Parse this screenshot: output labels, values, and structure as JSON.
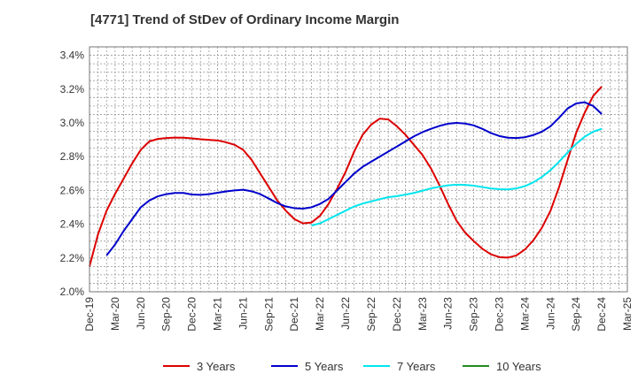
{
  "chart_data": {
    "type": "line",
    "title": "[4771]  Trend of StDev of Ordinary Income Margin",
    "xlabel": "",
    "ylabel": "",
    "x_ticks": [
      "Dec-19",
      "Mar-20",
      "Jun-20",
      "Sep-20",
      "Dec-20",
      "Mar-21",
      "Jun-21",
      "Sep-21",
      "Dec-21",
      "Mar-22",
      "Jun-22",
      "Sep-22",
      "Dec-22",
      "Mar-23",
      "Jun-23",
      "Sep-23",
      "Dec-23",
      "Mar-24",
      "Jun-24",
      "Sep-24",
      "Dec-24",
      "Mar-25"
    ],
    "y_ticks": [
      "2.0%",
      "2.2%",
      "2.4%",
      "2.6%",
      "2.8%",
      "3.0%",
      "3.2%",
      "3.4%"
    ],
    "ylim": [
      2.0,
      3.45
    ],
    "grid": true,
    "legend_position": "bottom",
    "series": [
      {
        "name": "3 Years",
        "color": "#dd0000",
        "points": [
          [
            "Dec-19",
            2.15
          ],
          [
            "Jan-20",
            2.34
          ],
          [
            "Feb-20",
            2.48
          ],
          [
            "Mar-20",
            2.58
          ],
          [
            "Apr-20",
            2.67
          ],
          [
            "May-20",
            2.76
          ],
          [
            "Jun-20",
            2.84
          ],
          [
            "Jul-20",
            2.89
          ],
          [
            "Aug-20",
            2.905
          ],
          [
            "Sep-20",
            2.91
          ],
          [
            "Oct-20",
            2.913
          ],
          [
            "Nov-20",
            2.912
          ],
          [
            "Dec-20",
            2.908
          ],
          [
            "Jan-21",
            2.903
          ],
          [
            "Feb-21",
            2.899
          ],
          [
            "Mar-21",
            2.896
          ],
          [
            "Apr-21",
            2.885
          ],
          [
            "May-21",
            2.87
          ],
          [
            "Jun-21",
            2.84
          ],
          [
            "Jul-21",
            2.78
          ],
          [
            "Aug-21",
            2.7
          ],
          [
            "Sep-21",
            2.62
          ],
          [
            "Oct-21",
            2.54
          ],
          [
            "Nov-21",
            2.48
          ],
          [
            "Dec-21",
            2.43
          ],
          [
            "Jan-22",
            2.405
          ],
          [
            "Feb-22",
            2.41
          ],
          [
            "Mar-22",
            2.45
          ],
          [
            "Apr-22",
            2.52
          ],
          [
            "May-22",
            2.61
          ],
          [
            "Jun-22",
            2.71
          ],
          [
            "Jul-22",
            2.83
          ],
          [
            "Aug-22",
            2.93
          ],
          [
            "Sep-22",
            2.99
          ],
          [
            "Oct-22",
            3.025
          ],
          [
            "Nov-22",
            3.02
          ],
          [
            "Dec-22",
            2.98
          ],
          [
            "Jan-23",
            2.93
          ],
          [
            "Feb-23",
            2.87
          ],
          [
            "Mar-23",
            2.81
          ],
          [
            "Apr-23",
            2.73
          ],
          [
            "May-23",
            2.63
          ],
          [
            "Jun-23",
            2.52
          ],
          [
            "Jul-23",
            2.42
          ],
          [
            "Aug-23",
            2.35
          ],
          [
            "Sep-23",
            2.3
          ],
          [
            "Oct-23",
            2.255
          ],
          [
            "Nov-23",
            2.222
          ],
          [
            "Dec-23",
            2.205
          ],
          [
            "Jan-24",
            2.202
          ],
          [
            "Feb-24",
            2.215
          ],
          [
            "Mar-24",
            2.25
          ],
          [
            "Apr-24",
            2.305
          ],
          [
            "May-24",
            2.38
          ],
          [
            "Jun-24",
            2.48
          ],
          [
            "Jul-24",
            2.62
          ],
          [
            "Aug-24",
            2.78
          ],
          [
            "Sep-24",
            2.94
          ],
          [
            "Oct-24",
            3.06
          ],
          [
            "Nov-24",
            3.16
          ],
          [
            "Dec-24",
            3.215
          ]
        ]
      },
      {
        "name": "5 Years",
        "color": "#0000cc",
        "points": [
          [
            "Feb-20",
            2.215
          ],
          [
            "Mar-20",
            2.28
          ],
          [
            "Apr-20",
            2.36
          ],
          [
            "May-20",
            2.43
          ],
          [
            "Jun-20",
            2.5
          ],
          [
            "Jul-20",
            2.54
          ],
          [
            "Aug-20",
            2.565
          ],
          [
            "Sep-20",
            2.578
          ],
          [
            "Oct-20",
            2.585
          ],
          [
            "Nov-20",
            2.585
          ],
          [
            "Dec-20",
            2.576
          ],
          [
            "Jan-21",
            2.574
          ],
          [
            "Feb-21",
            2.578
          ],
          [
            "Mar-21",
            2.586
          ],
          [
            "Apr-21",
            2.594
          ],
          [
            "May-21",
            2.6
          ],
          [
            "Jun-21",
            2.604
          ],
          [
            "Jul-21",
            2.595
          ],
          [
            "Aug-21",
            2.578
          ],
          [
            "Sep-21",
            2.552
          ],
          [
            "Oct-21",
            2.525
          ],
          [
            "Nov-21",
            2.505
          ],
          [
            "Dec-21",
            2.495
          ],
          [
            "Jan-22",
            2.492
          ],
          [
            "Feb-22",
            2.5
          ],
          [
            "Mar-22",
            2.52
          ],
          [
            "Apr-22",
            2.55
          ],
          [
            "May-22",
            2.6
          ],
          [
            "Jun-22",
            2.65
          ],
          [
            "Jul-22",
            2.7
          ],
          [
            "Aug-22",
            2.74
          ],
          [
            "Sep-22",
            2.77
          ],
          [
            "Oct-22",
            2.8
          ],
          [
            "Nov-22",
            2.83
          ],
          [
            "Dec-22",
            2.86
          ],
          [
            "Jan-23",
            2.89
          ],
          [
            "Feb-23",
            2.92
          ],
          [
            "Mar-23",
            2.945
          ],
          [
            "Apr-23",
            2.965
          ],
          [
            "May-23",
            2.982
          ],
          [
            "Jun-23",
            2.995
          ],
          [
            "Jul-23",
            3.0
          ],
          [
            "Aug-23",
            2.996
          ],
          [
            "Sep-23",
            2.985
          ],
          [
            "Oct-23",
            2.965
          ],
          [
            "Nov-23",
            2.94
          ],
          [
            "Dec-23",
            2.922
          ],
          [
            "Jan-24",
            2.912
          ],
          [
            "Feb-24",
            2.91
          ],
          [
            "Mar-24",
            2.915
          ],
          [
            "Apr-24",
            2.928
          ],
          [
            "May-24",
            2.948
          ],
          [
            "Jun-24",
            2.98
          ],
          [
            "Jul-24",
            3.03
          ],
          [
            "Aug-24",
            3.085
          ],
          [
            "Sep-24",
            3.115
          ],
          [
            "Oct-24",
            3.122
          ],
          [
            "Nov-24",
            3.1
          ],
          [
            "Dec-24",
            3.052
          ]
        ]
      },
      {
        "name": "7 Years",
        "color": "#00e5ee",
        "points": [
          [
            "Feb-22",
            2.392
          ],
          [
            "Mar-22",
            2.405
          ],
          [
            "Apr-22",
            2.43
          ],
          [
            "May-22",
            2.455
          ],
          [
            "Jun-22",
            2.48
          ],
          [
            "Jul-22",
            2.505
          ],
          [
            "Aug-22",
            2.522
          ],
          [
            "Sep-22",
            2.535
          ],
          [
            "Oct-22",
            2.548
          ],
          [
            "Nov-22",
            2.56
          ],
          [
            "Dec-22",
            2.566
          ],
          [
            "Jan-23",
            2.575
          ],
          [
            "Feb-23",
            2.585
          ],
          [
            "Mar-23",
            2.598
          ],
          [
            "Apr-23",
            2.612
          ],
          [
            "May-23",
            2.622
          ],
          [
            "Jun-23",
            2.63
          ],
          [
            "Jul-23",
            2.634
          ],
          [
            "Aug-23",
            2.633
          ],
          [
            "Sep-23",
            2.628
          ],
          [
            "Oct-23",
            2.62
          ],
          [
            "Nov-23",
            2.612
          ],
          [
            "Dec-23",
            2.607
          ],
          [
            "Jan-24",
            2.606
          ],
          [
            "Feb-24",
            2.612
          ],
          [
            "Mar-24",
            2.625
          ],
          [
            "Apr-24",
            2.648
          ],
          [
            "May-24",
            2.68
          ],
          [
            "Jun-24",
            2.72
          ],
          [
            "Jul-24",
            2.77
          ],
          [
            "Aug-24",
            2.825
          ],
          [
            "Sep-24",
            2.875
          ],
          [
            "Oct-24",
            2.918
          ],
          [
            "Nov-24",
            2.948
          ],
          [
            "Dec-24",
            2.965
          ]
        ]
      },
      {
        "name": "10 Years",
        "color": "#228b22",
        "points": []
      }
    ]
  }
}
